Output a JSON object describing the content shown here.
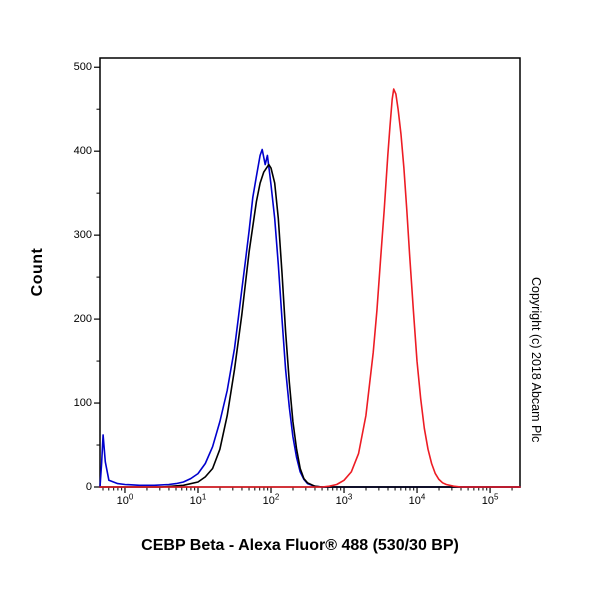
{
  "figure": {
    "ylabel": "Count",
    "xlabel": "CEBP Beta - Alexa Fluor® 488 (530/30 BP)",
    "copyright": "Copyright (c) 2018 Abcam Plc"
  },
  "chart_data": {
    "type": "line",
    "subtype": "flow-cytometry-histogram",
    "title": "",
    "xlabel": "CEBP Beta - Alexa Fluor® 488 (530/30 BP)",
    "ylabel": "Count",
    "x_scale": "log10",
    "x_range_log10": [
      -0.342,
      5.41
    ],
    "x_tick_exponents": [
      0,
      1,
      2,
      3,
      4,
      5
    ],
    "ylim": [
      0,
      511
    ],
    "y_ticks": [
      0,
      100,
      200,
      300,
      400,
      500
    ],
    "grid": false,
    "legend": "none",
    "axis_color": "#000000",
    "series": [
      {
        "name": "blue",
        "color": "#0000cd",
        "peak_x_log10": 1.88,
        "peak_count": 402,
        "points": [
          [
            -0.342,
            0
          ],
          [
            -0.32,
            28
          ],
          [
            -0.3,
            62
          ],
          [
            -0.27,
            30
          ],
          [
            -0.22,
            8
          ],
          [
            -0.1,
            4
          ],
          [
            0.0,
            3
          ],
          [
            0.2,
            2
          ],
          [
            0.4,
            2
          ],
          [
            0.6,
            3
          ],
          [
            0.7,
            4
          ],
          [
            0.8,
            6
          ],
          [
            0.9,
            10
          ],
          [
            1.0,
            16
          ],
          [
            1.1,
            28
          ],
          [
            1.2,
            48
          ],
          [
            1.3,
            78
          ],
          [
            1.4,
            115
          ],
          [
            1.5,
            165
          ],
          [
            1.55,
            200
          ],
          [
            1.6,
            235
          ],
          [
            1.65,
            270
          ],
          [
            1.7,
            305
          ],
          [
            1.75,
            345
          ],
          [
            1.8,
            370
          ],
          [
            1.85,
            395
          ],
          [
            1.88,
            402
          ],
          [
            1.92,
            384
          ],
          [
            1.95,
            395
          ],
          [
            1.98,
            375
          ],
          [
            2.0,
            360
          ],
          [
            2.05,
            320
          ],
          [
            2.1,
            265
          ],
          [
            2.15,
            200
          ],
          [
            2.2,
            140
          ],
          [
            2.25,
            95
          ],
          [
            2.3,
            60
          ],
          [
            2.35,
            35
          ],
          [
            2.4,
            18
          ],
          [
            2.45,
            9
          ],
          [
            2.5,
            4
          ],
          [
            2.6,
            1
          ],
          [
            2.7,
            0
          ],
          [
            5.41,
            0
          ]
        ]
      },
      {
        "name": "black",
        "color": "#000000",
        "peak_x_log10": 1.97,
        "peak_count": 384,
        "points": [
          [
            -0.342,
            0
          ],
          [
            0.5,
            0
          ],
          [
            0.8,
            2
          ],
          [
            1.0,
            6
          ],
          [
            1.1,
            12
          ],
          [
            1.2,
            22
          ],
          [
            1.3,
            45
          ],
          [
            1.4,
            85
          ],
          [
            1.5,
            140
          ],
          [
            1.6,
            205
          ],
          [
            1.7,
            280
          ],
          [
            1.8,
            340
          ],
          [
            1.85,
            362
          ],
          [
            1.9,
            375
          ],
          [
            1.97,
            384
          ],
          [
            2.0,
            380
          ],
          [
            2.05,
            362
          ],
          [
            2.1,
            320
          ],
          [
            2.15,
            255
          ],
          [
            2.2,
            185
          ],
          [
            2.25,
            125
          ],
          [
            2.3,
            78
          ],
          [
            2.35,
            45
          ],
          [
            2.4,
            22
          ],
          [
            2.45,
            10
          ],
          [
            2.5,
            5
          ],
          [
            2.6,
            1
          ],
          [
            2.7,
            0
          ],
          [
            5.41,
            0
          ]
        ]
      },
      {
        "name": "red",
        "color": "#ed1c24",
        "peak_x_log10": 3.68,
        "peak_count": 474,
        "points": [
          [
            -0.342,
            0
          ],
          [
            2.7,
            0
          ],
          [
            2.8,
            1
          ],
          [
            2.9,
            3
          ],
          [
            3.0,
            8
          ],
          [
            3.1,
            18
          ],
          [
            3.2,
            40
          ],
          [
            3.3,
            85
          ],
          [
            3.4,
            160
          ],
          [
            3.45,
            210
          ],
          [
            3.5,
            270
          ],
          [
            3.55,
            330
          ],
          [
            3.6,
            395
          ],
          [
            3.63,
            430
          ],
          [
            3.66,
            462
          ],
          [
            3.68,
            474
          ],
          [
            3.71,
            468
          ],
          [
            3.74,
            450
          ],
          [
            3.78,
            420
          ],
          [
            3.82,
            380
          ],
          [
            3.86,
            330
          ],
          [
            3.9,
            275
          ],
          [
            3.95,
            210
          ],
          [
            4.0,
            150
          ],
          [
            4.05,
            105
          ],
          [
            4.1,
            70
          ],
          [
            4.15,
            45
          ],
          [
            4.2,
            28
          ],
          [
            4.25,
            16
          ],
          [
            4.3,
            9
          ],
          [
            4.35,
            5
          ],
          [
            4.4,
            3
          ],
          [
            4.5,
            1
          ],
          [
            4.6,
            0
          ],
          [
            5.41,
            0
          ]
        ]
      }
    ]
  }
}
